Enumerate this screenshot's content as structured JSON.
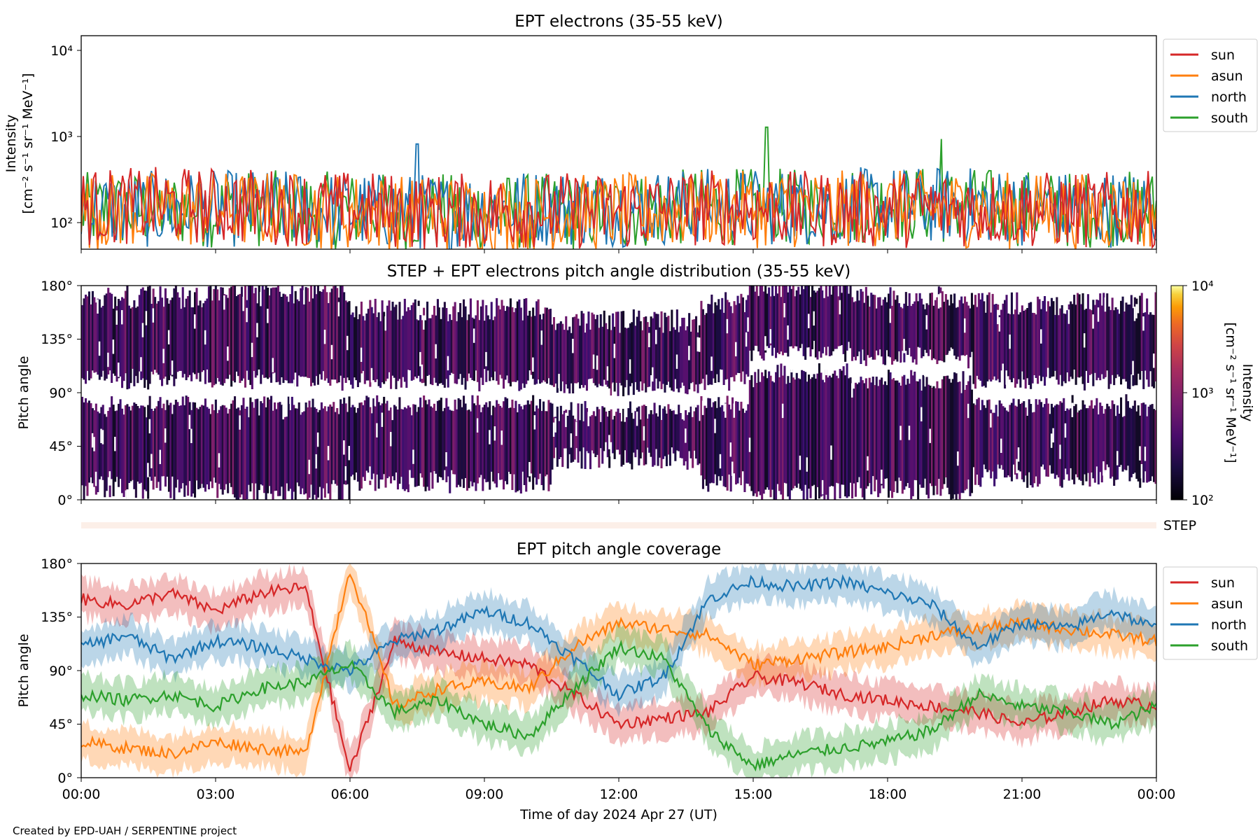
{
  "figure": {
    "credit": "Created by EPD-UAH / SERPENTINE project"
  },
  "colors": {
    "sun": "#d62728",
    "asun": "#ff7f0e",
    "north": "#1f77b4",
    "south": "#2ca02c"
  },
  "panels": {
    "intensity": {
      "title": "EPT electrons (35-55 keV)",
      "ylabel_line1": "Intensity",
      "ylabel_line2": "[cm⁻² s⁻¹ sr⁻¹ MeV⁻¹]",
      "yticks": [
        "10⁴",
        "10³",
        "10²"
      ]
    },
    "pad": {
      "title": "STEP + EPT electrons pitch angle distribution (35-55 keV)",
      "ylabel": "Pitch angle",
      "yticks": [
        "180°",
        "135°",
        "90°",
        "45°",
        "0°"
      ],
      "colorbar_label": "Intensity",
      "colorbar_units": "[cm⁻² s⁻¹ sr⁻¹ MeV⁻¹]",
      "colorbar_ticks": [
        "10⁴",
        "10³",
        "10²"
      ]
    },
    "step": {
      "label": "STEP"
    },
    "coverage": {
      "title": "EPT pitch angle coverage",
      "ylabel": "Pitch angle",
      "yticks": [
        "180°",
        "135°",
        "90°",
        "45°",
        "0°"
      ],
      "xlabel": "Time of day 2024 Apr 27 (UT)"
    }
  },
  "chart_data": [
    {
      "type": "line",
      "title": "EPT electrons (35-55 keV)",
      "ylabel": "Intensity [cm⁻² s⁻¹ sr⁻¹ MeV⁻¹]",
      "yscale": "log",
      "ylim": [
        50,
        15000
      ],
      "xlim": [
        "00:00",
        "24:00"
      ],
      "legend_position": "outside-right-top",
      "x_hours": [
        0,
        2,
        4,
        6,
        8,
        10,
        12,
        14,
        16,
        18,
        20,
        22,
        24
      ],
      "series": [
        {
          "name": "sun",
          "values": [
            170,
            180,
            175,
            160,
            150,
            160,
            150,
            170,
            160,
            160,
            165,
            155,
            160
          ]
        },
        {
          "name": "asun",
          "values": [
            150,
            160,
            160,
            150,
            140,
            145,
            150,
            160,
            160,
            165,
            160,
            150,
            155
          ]
        },
        {
          "name": "north",
          "values": [
            160,
            160,
            165,
            155,
            150,
            170,
            165,
            175,
            170,
            180,
            180,
            160,
            165
          ]
        },
        {
          "name": "south",
          "values": [
            155,
            160,
            165,
            155,
            150,
            150,
            150,
            175,
            170,
            185,
            175,
            160,
            165
          ]
        }
      ],
      "notable_peaks": [
        {
          "series": "south",
          "hour": 15.3,
          "value": 1300
        },
        {
          "series": "north",
          "hour": 7.5,
          "value": 830
        },
        {
          "series": "south",
          "hour": 19.2,
          "value": 950
        }
      ]
    },
    {
      "type": "heatmap",
      "title": "STEP + EPT electrons pitch angle distribution (35-55 keV)",
      "ylabel": "Pitch angle",
      "ylim": [
        0,
        180
      ],
      "colorbar": {
        "label": "Intensity [cm⁻² s⁻¹ sr⁻¹ MeV⁻¹]",
        "scale": "log",
        "range": [
          100,
          10000
        ],
        "colormap": "inferno"
      },
      "typical_intensity": 300,
      "segments": [
        {
          "from_h": 0.0,
          "to_h": 3.0,
          "band_lo": 10,
          "band_hi": 170,
          "gap_center": 90
        },
        {
          "from_h": 3.0,
          "to_h": 6.0,
          "band_lo": 5,
          "band_hi": 175,
          "gap_center": 90
        },
        {
          "from_h": 6.0,
          "to_h": 10.5,
          "band_lo": 15,
          "band_hi": 160,
          "gap_center": 90
        },
        {
          "from_h": 10.5,
          "to_h": 13.8,
          "band_lo": 35,
          "band_hi": 150,
          "gap_center": 85
        },
        {
          "from_h": 13.8,
          "to_h": 14.9,
          "band_lo": 15,
          "band_hi": 165,
          "gap_center": 90
        },
        {
          "from_h": 14.9,
          "to_h": 17.2,
          "band_lo": 5,
          "band_hi": 180,
          "gap_center": 115
        },
        {
          "from_h": 17.2,
          "to_h": 19.9,
          "band_lo": 10,
          "band_hi": 170,
          "gap_center": 110
        },
        {
          "from_h": 19.9,
          "to_h": 24.0,
          "band_lo": 20,
          "band_hi": 165,
          "gap_center": 90
        }
      ]
    },
    {
      "type": "line",
      "title": "EPT pitch angle coverage",
      "xlabel": "Time of day 2024 Apr 27 (UT)",
      "ylabel": "Pitch angle",
      "ylim": [
        0,
        180
      ],
      "xlim": [
        "00:00",
        "24:00"
      ],
      "x_ticks": [
        "00:00",
        "03:00",
        "06:00",
        "09:00",
        "12:00",
        "15:00",
        "18:00",
        "21:00",
        "00:00"
      ],
      "legend_position": "outside-right-top",
      "x_hours": [
        0,
        1,
        2,
        3,
        4,
        5,
        6,
        7,
        8,
        9,
        10,
        11,
        12,
        13,
        14,
        15,
        16,
        17,
        18,
        19,
        20,
        21,
        22,
        23,
        24
      ],
      "series": [
        {
          "name": "sun",
          "values": [
            150,
            145,
            155,
            140,
            155,
            160,
            5,
            115,
            105,
            100,
            95,
            70,
            45,
            50,
            55,
            85,
            80,
            70,
            65,
            60,
            55,
            45,
            55,
            65,
            60
          ]
        },
        {
          "name": "asun",
          "values": [
            30,
            25,
            20,
            30,
            25,
            20,
            175,
            60,
            75,
            80,
            75,
            110,
            130,
            125,
            120,
            95,
            100,
            105,
            110,
            120,
            125,
            130,
            125,
            120,
            115
          ]
        },
        {
          "name": "north",
          "values": [
            110,
            120,
            100,
            115,
            110,
            100,
            90,
            115,
            125,
            140,
            130,
            100,
            70,
            85,
            150,
            165,
            160,
            165,
            155,
            145,
            110,
            130,
            125,
            140,
            125
          ]
        },
        {
          "name": "south",
          "values": [
            70,
            65,
            70,
            60,
            75,
            80,
            95,
            55,
            65,
            45,
            35,
            75,
            110,
            100,
            40,
            10,
            20,
            25,
            30,
            40,
            70,
            60,
            55,
            45,
            60
          ]
        }
      ],
      "uncertainty_band_deg": 15
    }
  ]
}
